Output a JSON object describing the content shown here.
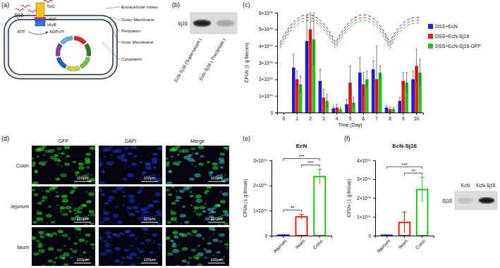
{
  "panel_labels": [
    "(a)",
    "(b)",
    "(c)",
    "(d)",
    "(e)",
    "(f)"
  ],
  "diagram": {
    "protein": "Sj16",
    "tolc": "TolC",
    "hlyd": "HlyD",
    "hlyb": "HlyB",
    "atp": "ATP",
    "adp": "ADP+Pi",
    "layers": [
      "Extracellular milieu",
      "Outer Membrane",
      "Periplasm",
      "Inner Membrane",
      "Cytoplasm"
    ]
  },
  "blot_b": {
    "band": "Sj16",
    "lanes": [
      "EcN-Sj16 (Supernatant )",
      "EcN-Sj16 ( Precipitate )"
    ]
  },
  "microscopy": {
    "columns": [
      "GFP",
      "DAPI",
      "Merge"
    ],
    "rows": [
      "Colon",
      "Jejunum",
      "Ileum"
    ],
    "scale_bar": "100μm"
  },
  "blot_f": {
    "band": "Sj16",
    "lanes": [
      "EcN",
      "EcN-Sj16"
    ]
  },
  "chart_data": [
    {
      "type": "bar",
      "x_label": "Time (Day)",
      "y_label": "CFUs (1 g faeces)",
      "categories": [
        0,
        1,
        2,
        3,
        4,
        5,
        6,
        7,
        8,
        9,
        10
      ],
      "series": [
        {
          "name": "DSS+EcN",
          "color": "#1f1fe0",
          "values": [
            0,
            270000000,
            430000000,
            190000000,
            25000000,
            50000000,
            240000000,
            260000000,
            30000000,
            70000000,
            200000000
          ],
          "errors": [
            0,
            80000000,
            150000000,
            70000000,
            10000000,
            30000000,
            90000000,
            50000000,
            10000000,
            20000000,
            50000000
          ]
        },
        {
          "name": "DSS+EcN-Sj16",
          "color": "#f01c1c",
          "values": [
            0,
            200000000,
            500000000,
            90000000,
            30000000,
            180000000,
            170000000,
            200000000,
            20000000,
            190000000,
            280000000
          ],
          "errors": [
            0,
            50000000,
            100000000,
            50000000,
            20000000,
            100000000,
            70000000,
            200000000,
            10000000,
            50000000,
            100000000
          ]
        },
        {
          "name": "DSS+EcN-Sj16-GFP",
          "color": "#22c422",
          "values": [
            0,
            170000000,
            440000000,
            70000000,
            20000000,
            60000000,
            200000000,
            240000000,
            20000000,
            180000000,
            240000000
          ],
          "errors": [
            0,
            50000000,
            160000000,
            40000000,
            10000000,
            30000000,
            50000000,
            40000000,
            10000000,
            60000000,
            80000000
          ]
        }
      ],
      "ylim": [
        0,
        600000000
      ],
      "yticks": [
        0,
        {
          "value": 100000000,
          "label": "1×10⁰⁸"
        },
        {
          "value": 200000000,
          "label": "2×10⁰⁸"
        },
        {
          "value": 300000000,
          "label": "3×10⁰⁸"
        },
        {
          "value": 400000000,
          "label": "4×10⁰⁸"
        },
        {
          "value": 500000000,
          "label": "5×10⁰⁸"
        },
        {
          "value": 600000000,
          "label": "6×10⁰⁸"
        }
      ],
      "legend": "right"
    },
    {
      "type": "bar",
      "title": "EcN",
      "y_label": "CFUs (1 g tissue)",
      "categories": [
        "Jejunum",
        "Ileum",
        "Colon"
      ],
      "values": [
        20000,
        750000,
        2350000
      ],
      "errors": [
        20000,
        100000,
        300000
      ],
      "colors": [
        "#1f1fe0",
        "#f01c1c",
        "#22c422"
      ],
      "ylim": [
        0,
        3000000
      ],
      "yticks": [
        0,
        {
          "value": 1000000,
          "label": "1×10⁰⁶"
        },
        {
          "value": 2000000,
          "label": "2×10⁰⁶"
        },
        {
          "value": 3000000,
          "label": "3×10⁰⁶"
        }
      ],
      "annotations": [
        {
          "text": "***",
          "pair": [
            0,
            2
          ]
        },
        {
          "text": "**",
          "pair": [
            0,
            1
          ]
        },
        {
          "text": "***",
          "pair": [
            1,
            2
          ]
        }
      ]
    },
    {
      "type": "bar",
      "title": "EcN-Sj16",
      "y_label": "CFUs (1 g tissue)",
      "categories": [
        "Jejunum",
        "Ileum",
        "Colon"
      ],
      "values": [
        20000,
        700000,
        2450000
      ],
      "errors": [
        20000,
        550000,
        650000
      ],
      "colors": [
        "#1f1fe0",
        "#f01c1c",
        "#22c422"
      ],
      "ylim": [
        0,
        4000000
      ],
      "yticks": [
        0,
        {
          "value": 1000000,
          "label": "1×10⁰⁶"
        },
        {
          "value": 2000000,
          "label": "2×10⁰⁶"
        },
        {
          "value": 3000000,
          "label": "3×10⁰⁶"
        },
        {
          "value": 4000000,
          "label": "4×10⁰⁶"
        }
      ],
      "annotations": [
        {
          "text": "***",
          "pair": [
            0,
            2
          ]
        },
        {
          "text": "**",
          "pair": [
            1,
            2
          ]
        }
      ]
    }
  ]
}
